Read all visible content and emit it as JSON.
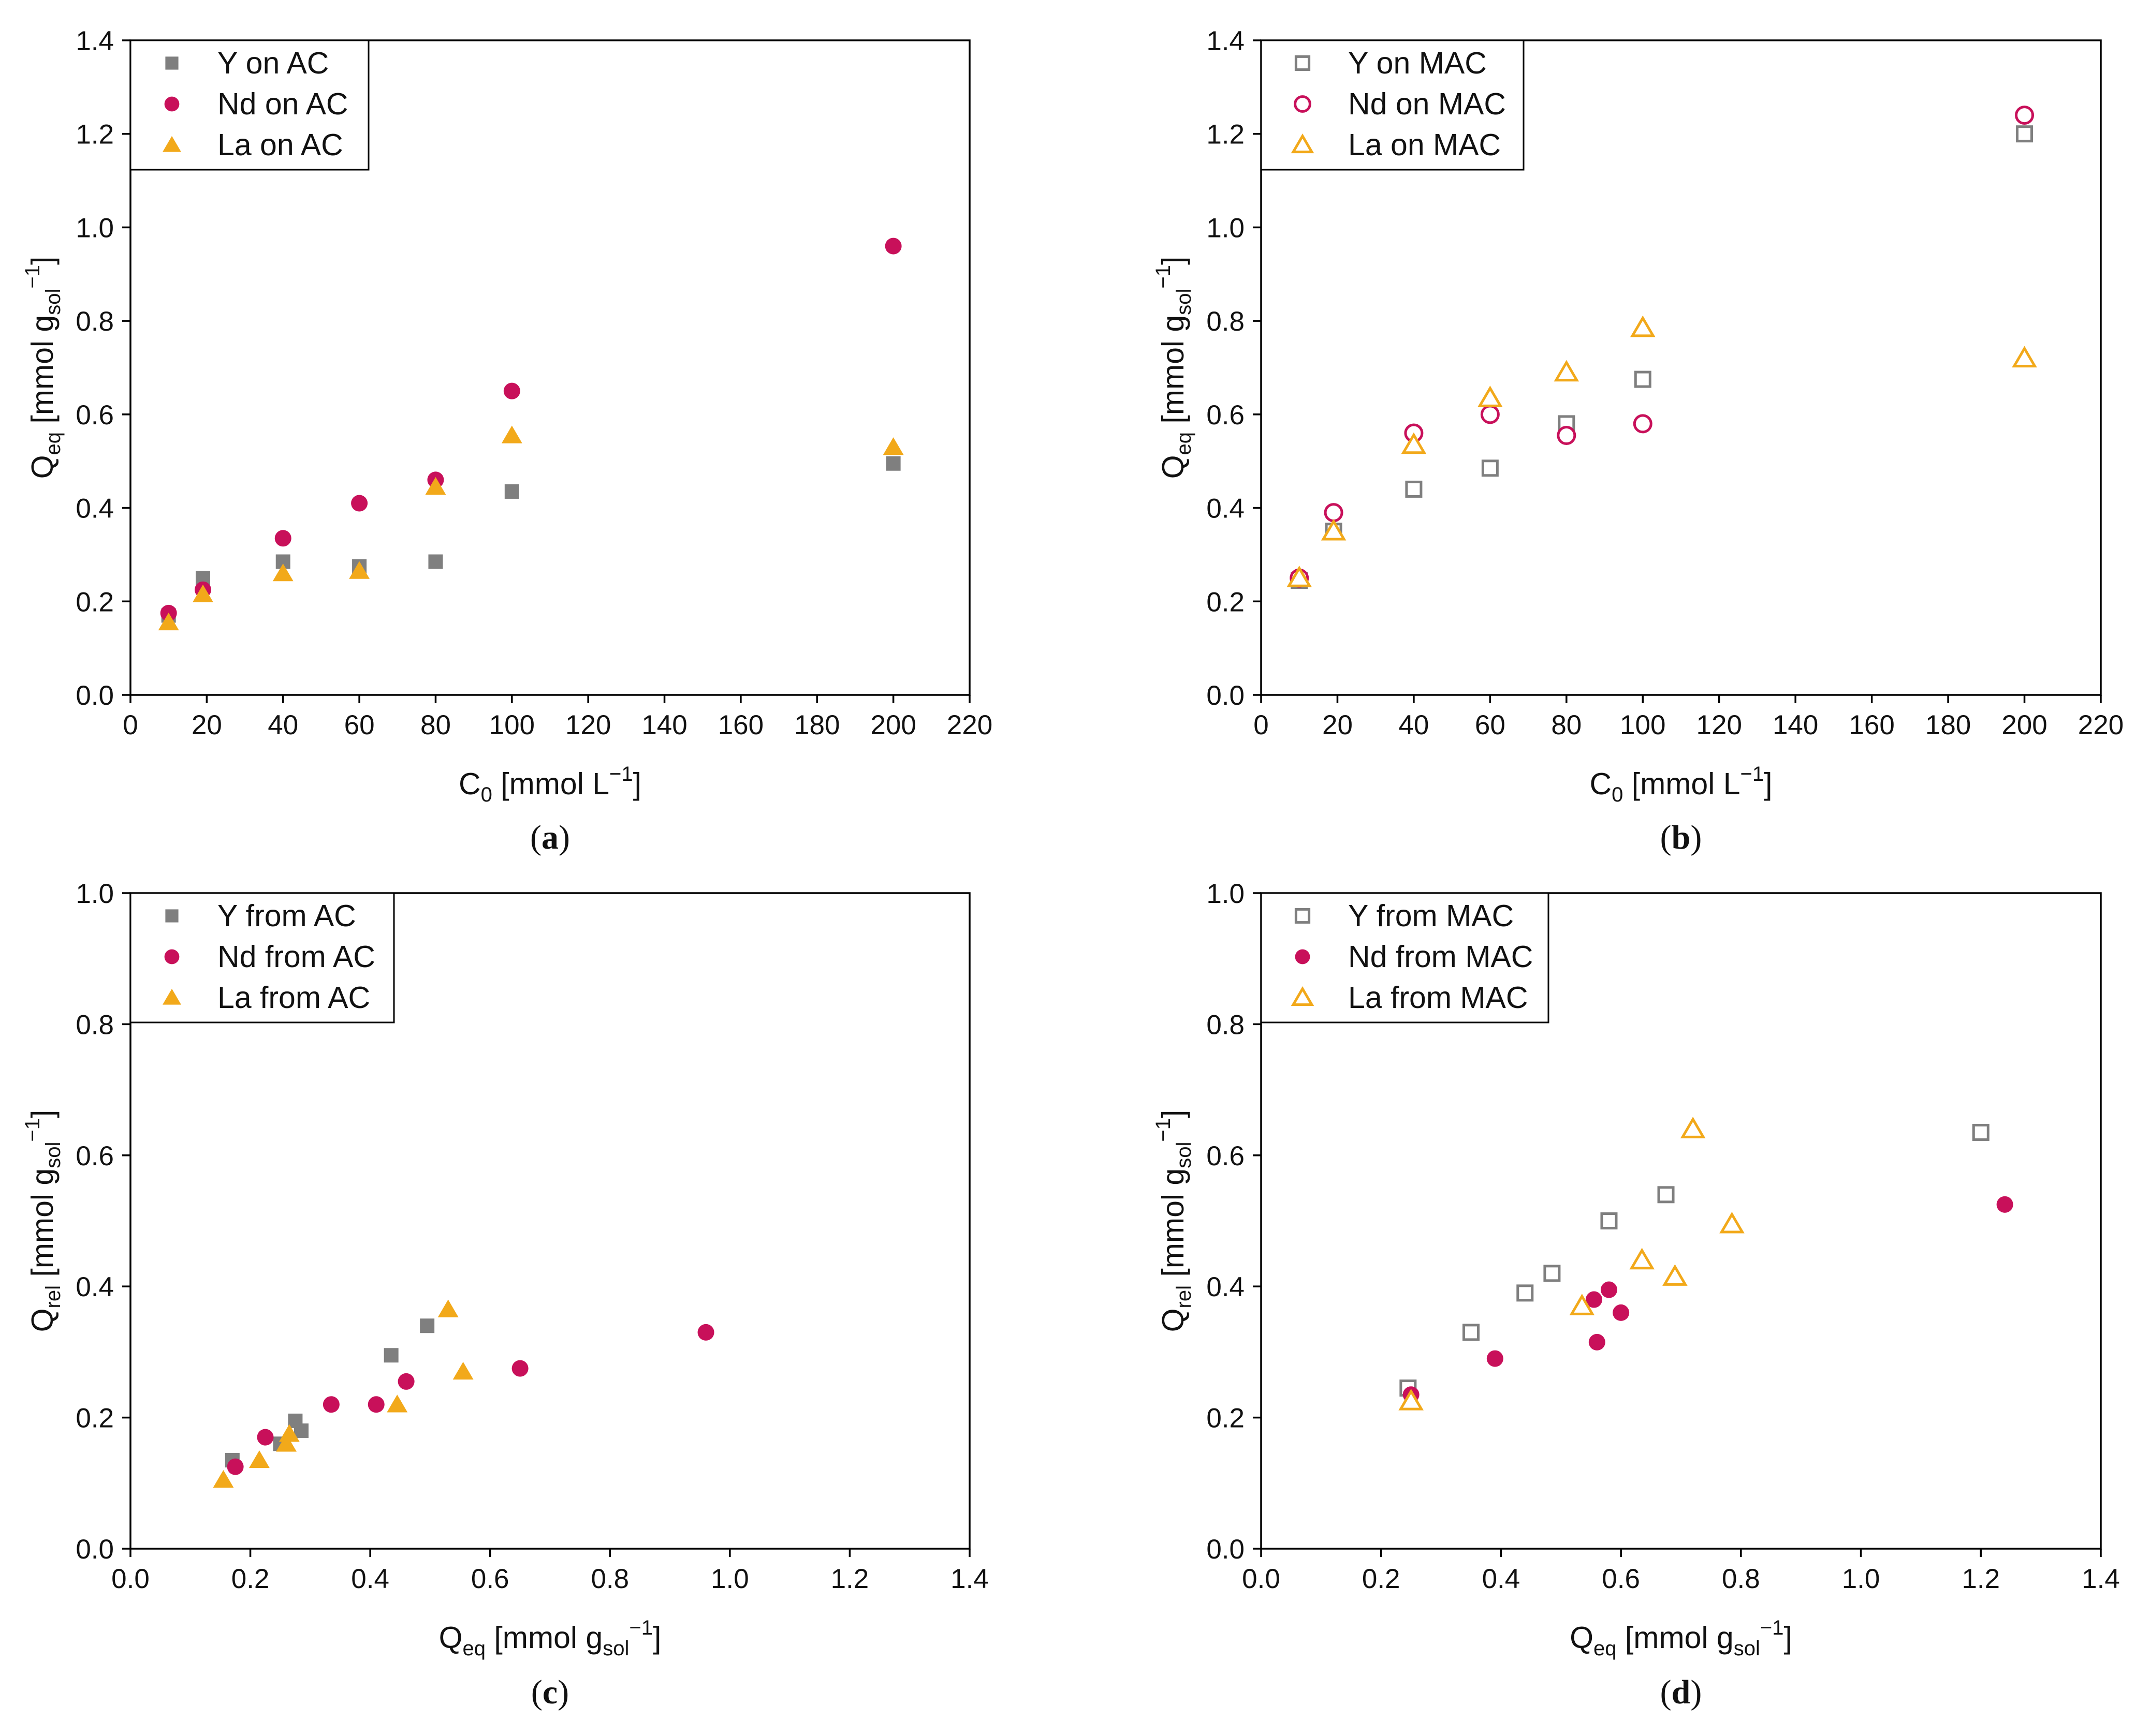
{
  "colors": {
    "Y": "#7f7f7f",
    "Nd": "#c8105a",
    "La": "#f2a91a"
  },
  "chart_data": [
    {
      "panel": "(a)",
      "panel_letter": "a",
      "type": "scatter",
      "xlabel": {
        "main": "C",
        "sub": "0",
        "rest": " [mmol L",
        "sup": "−1",
        "end": "]"
      },
      "ylabel": {
        "main": "Q",
        "sub": "eq",
        "rest": " [mmol g",
        "sub2": "sol",
        "sup": "−1",
        "end": "]"
      },
      "xlim": [
        0,
        220
      ],
      "ylim": [
        0,
        1.4
      ],
      "xticks": [
        "0",
        "20",
        "40",
        "60",
        "80",
        "100",
        "120",
        "140",
        "160",
        "180",
        "200",
        "220"
      ],
      "yticks": [
        "0.0",
        "0.2",
        "0.4",
        "0.6",
        "0.8",
        "1.0",
        "1.2",
        "1.4"
      ],
      "legend_position": "top-left",
      "series": [
        {
          "name": "Y on AC",
          "element": "Y",
          "marker": "square",
          "filled": true,
          "x": [
            10,
            19,
            40,
            60,
            80,
            100,
            200
          ],
          "y": [
            0.17,
            0.25,
            0.285,
            0.275,
            0.285,
            0.435,
            0.495
          ]
        },
        {
          "name": "Nd on AC",
          "element": "Nd",
          "marker": "circle",
          "filled": true,
          "x": [
            10,
            19,
            40,
            60,
            80,
            100,
            200
          ],
          "y": [
            0.175,
            0.225,
            0.335,
            0.41,
            0.46,
            0.65,
            0.96
          ]
        },
        {
          "name": "La on AC",
          "element": "La",
          "marker": "triangle",
          "filled": true,
          "x": [
            10,
            19,
            40,
            60,
            80,
            100,
            200
          ],
          "y": [
            0.155,
            0.215,
            0.26,
            0.265,
            0.445,
            0.555,
            0.53
          ]
        }
      ]
    },
    {
      "panel": "(b)",
      "panel_letter": "b",
      "type": "scatter",
      "xlabel": {
        "main": "C",
        "sub": "0",
        "rest": " [mmol L",
        "sup": "−1",
        "end": "]"
      },
      "ylabel": {
        "main": "Q",
        "sub": "eq",
        "rest": " [mmol g",
        "sub2": "sol",
        "sup": "−1",
        "end": "]"
      },
      "xlim": [
        0,
        220
      ],
      "ylim": [
        0,
        1.4
      ],
      "xticks": [
        "0",
        "20",
        "40",
        "60",
        "80",
        "100",
        "120",
        "140",
        "160",
        "180",
        "200",
        "220"
      ],
      "yticks": [
        "0.0",
        "0.2",
        "0.4",
        "0.6",
        "0.8",
        "1.0",
        "1.2",
        "1.4"
      ],
      "legend_position": "top-left",
      "series": [
        {
          "name": "Y on MAC",
          "element": "Y",
          "marker": "square",
          "filled": false,
          "x": [
            10,
            19,
            40,
            60,
            80,
            100,
            200
          ],
          "y": [
            0.245,
            0.35,
            0.44,
            0.485,
            0.58,
            0.675,
            1.2
          ]
        },
        {
          "name": "Nd on MAC",
          "element": "Nd",
          "marker": "circle",
          "filled": false,
          "x": [
            10,
            19,
            40,
            60,
            80,
            100,
            200
          ],
          "y": [
            0.25,
            0.39,
            0.56,
            0.6,
            0.555,
            0.58,
            1.24
          ]
        },
        {
          "name": "La on MAC",
          "element": "La",
          "marker": "triangle",
          "filled": false,
          "x": [
            10,
            19,
            40,
            60,
            80,
            100,
            200
          ],
          "y": [
            0.25,
            0.35,
            0.535,
            0.635,
            0.69,
            0.785,
            0.72
          ]
        }
      ]
    },
    {
      "panel": "(c)",
      "panel_letter": "c",
      "type": "scatter",
      "xlabel": {
        "main": "Q",
        "sub": "eq",
        "rest": " [mmol g",
        "sub2": "sol",
        "sup": "−1",
        "end": "]"
      },
      "ylabel": {
        "main": "Q",
        "sub": "rel",
        "rest": " [mmol g",
        "sub2": "sol",
        "sup": "−1",
        "end": "]"
      },
      "xlim": [
        0,
        1.4
      ],
      "ylim": [
        0,
        1.0
      ],
      "xticks": [
        "0.0",
        "0.2",
        "0.4",
        "0.6",
        "0.8",
        "1.0",
        "1.2",
        "1.4"
      ],
      "yticks": [
        "0.0",
        "0.2",
        "0.4",
        "0.6",
        "0.8",
        "1.0"
      ],
      "legend_position": "top-left",
      "series": [
        {
          "name": "Y from AC",
          "element": "Y",
          "marker": "square",
          "filled": true,
          "x": [
            0.17,
            0.25,
            0.275,
            0.285,
            0.435,
            0.495
          ],
          "y": [
            0.135,
            0.16,
            0.195,
            0.18,
            0.295,
            0.34
          ]
        },
        {
          "name": "Nd from AC",
          "element": "Nd",
          "marker": "circle",
          "filled": true,
          "x": [
            0.175,
            0.225,
            0.335,
            0.41,
            0.46,
            0.65,
            0.96
          ],
          "y": [
            0.125,
            0.17,
            0.22,
            0.22,
            0.255,
            0.275,
            0.33
          ]
        },
        {
          "name": "La from AC",
          "element": "La",
          "marker": "triangle",
          "filled": true,
          "x": [
            0.155,
            0.215,
            0.26,
            0.265,
            0.445,
            0.53,
            0.555
          ],
          "y": [
            0.105,
            0.135,
            0.16,
            0.175,
            0.22,
            0.365,
            0.27
          ]
        }
      ]
    },
    {
      "panel": "(d)",
      "panel_letter": "d",
      "type": "scatter",
      "xlabel": {
        "main": "Q",
        "sub": "eq",
        "rest": " [mmol g",
        "sub2": "sol",
        "sup": "−1",
        "end": "]"
      },
      "ylabel": {
        "main": "Q",
        "sub": "rel",
        "rest": " [mmol g",
        "sub2": "sol",
        "sup": "−1",
        "end": "]"
      },
      "xlim": [
        0,
        1.4
      ],
      "ylim": [
        0,
        1.0
      ],
      "xticks": [
        "0.0",
        "0.2",
        "0.4",
        "0.6",
        "0.8",
        "1.0",
        "1.2",
        "1.4"
      ],
      "yticks": [
        "0.0",
        "0.2",
        "0.4",
        "0.6",
        "0.8",
        "1.0"
      ],
      "legend_position": "top-left",
      "series": [
        {
          "name": "Y from MAC",
          "element": "Y",
          "marker": "square",
          "filled": false,
          "x": [
            0.245,
            0.35,
            0.44,
            0.485,
            0.58,
            0.675,
            1.2
          ],
          "y": [
            0.245,
            0.33,
            0.39,
            0.42,
            0.5,
            0.54,
            0.635
          ]
        },
        {
          "name": "Nd from MAC",
          "element": "Nd",
          "marker": "circle",
          "filled": true,
          "x": [
            0.25,
            0.39,
            0.555,
            0.56,
            0.58,
            0.6,
            1.24
          ],
          "y": [
            0.235,
            0.29,
            0.38,
            0.315,
            0.395,
            0.36,
            0.525
          ]
        },
        {
          "name": "La from MAC",
          "element": "La",
          "marker": "triangle",
          "filled": false,
          "x": [
            0.25,
            0.535,
            0.635,
            0.69,
            0.72,
            0.785
          ],
          "y": [
            0.225,
            0.37,
            0.44,
            0.415,
            0.64,
            0.495
          ]
        }
      ]
    }
  ]
}
